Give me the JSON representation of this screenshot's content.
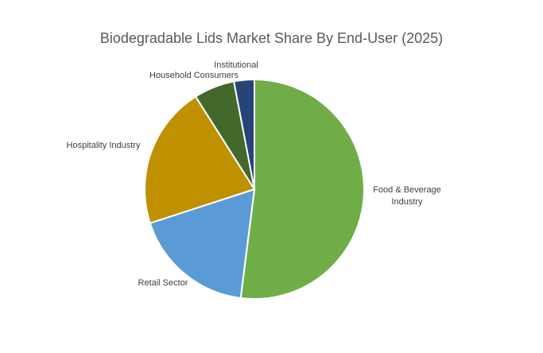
{
  "chart_data": {
    "type": "pie",
    "title": "Biodegradable Lids Market Share By End-User (2025)",
    "slices": [
      {
        "label": "Food & Beverage Industry",
        "value": 52,
        "color": "#70AD47"
      },
      {
        "label": "Retail Sector",
        "value": 18,
        "color": "#5B9BD5"
      },
      {
        "label": "Hospitality Industry",
        "value": 21,
        "color": "#BF9000"
      },
      {
        "label": "Household Consumers",
        "value": 6,
        "color": "#43682B"
      },
      {
        "label": "Institutional",
        "value": 3,
        "color": "#264478"
      }
    ],
    "start_angle_deg": 0,
    "direction": "clockwise"
  }
}
